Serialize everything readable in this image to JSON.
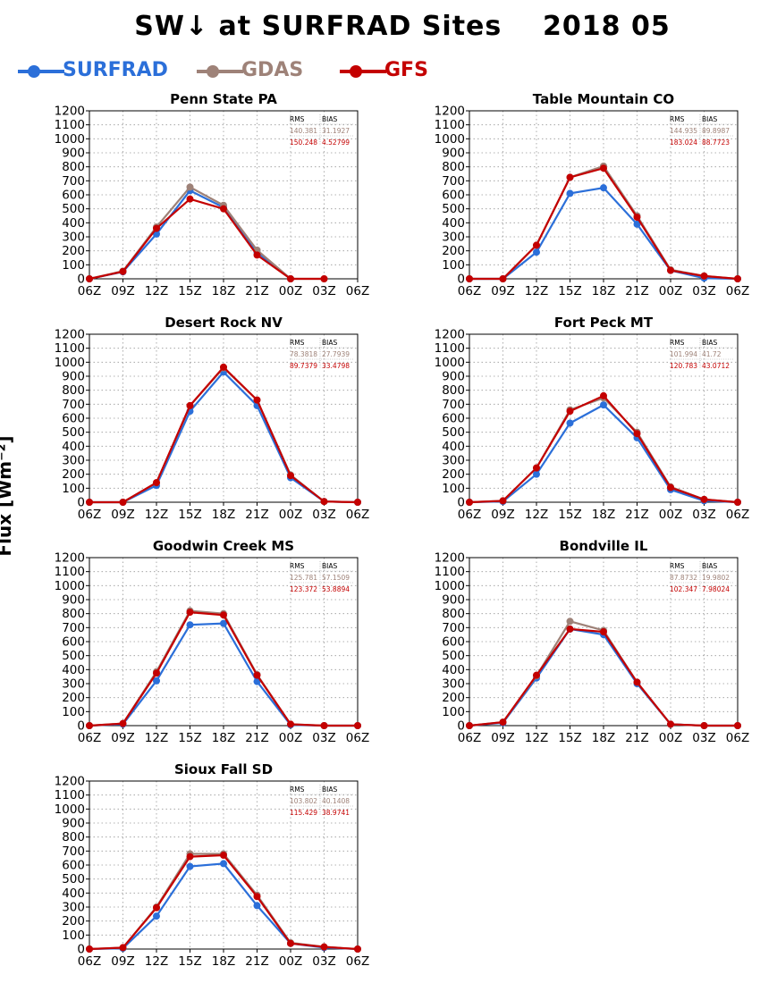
{
  "title": "SW↓ at SURFRAD Sites    2018 05",
  "legend": [
    {
      "label": "SURFRAD",
      "color": "#2b6fd9",
      "text_color": "#2b6fd9"
    },
    {
      "label": "GDAS",
      "color": "#9e8278",
      "text_color": "#9e8278"
    },
    {
      "label": "GFS",
      "color": "#c40000",
      "text_color": "#c40000"
    }
  ],
  "ylabel": "Flux [Wm⁻²]",
  "stat_headers": [
    "RMS",
    "BIAS"
  ],
  "chart_data": [
    {
      "type": "line",
      "title": "Penn State PA",
      "categories": [
        "06Z",
        "09Z",
        "12Z",
        "15Z",
        "18Z",
        "21Z",
        "00Z",
        "03Z",
        "06Z"
      ],
      "ylim": [
        0,
        1200
      ],
      "yticks": [
        0,
        100,
        200,
        300,
        400,
        500,
        600,
        700,
        800,
        900,
        1000,
        1100,
        1200
      ],
      "grid": true,
      "series": [
        {
          "name": "SURFRAD",
          "values": [
            0,
            50,
            320,
            630,
            510,
            190,
            0,
            null,
            null
          ]
        },
        {
          "name": "GDAS",
          "values": [
            0,
            55,
            370,
            655,
            525,
            205,
            0,
            0,
            null
          ]
        },
        {
          "name": "GFS",
          "values": [
            0,
            52,
            360,
            570,
            500,
            170,
            0,
            0,
            null
          ]
        }
      ],
      "stats": {
        "GDAS": [
          "140.381",
          "31.1927"
        ],
        "GFS": [
          "150.248",
          "4.52799"
        ]
      }
    },
    {
      "type": "line",
      "title": "Table Mountain CO",
      "categories": [
        "06Z",
        "09Z",
        "12Z",
        "15Z",
        "18Z",
        "21Z",
        "00Z",
        "03Z",
        "06Z"
      ],
      "ylim": [
        0,
        1200
      ],
      "yticks": [
        0,
        100,
        200,
        300,
        400,
        500,
        600,
        700,
        800,
        900,
        1000,
        1100,
        1200
      ],
      "grid": true,
      "series": [
        {
          "name": "SURFRAD",
          "values": [
            0,
            0,
            190,
            610,
            650,
            390,
            60,
            5,
            0
          ]
        },
        {
          "name": "GDAS",
          "values": [
            0,
            0,
            240,
            725,
            805,
            450,
            65,
            20,
            0
          ]
        },
        {
          "name": "GFS",
          "values": [
            0,
            0,
            240,
            725,
            790,
            440,
            60,
            20,
            0
          ]
        }
      ],
      "stats": {
        "GDAS": [
          "144.935",
          "89.8987"
        ],
        "GFS": [
          "183.024",
          "88.7723"
        ]
      }
    },
    {
      "type": "line",
      "title": "Desert Rock NV",
      "categories": [
        "06Z",
        "09Z",
        "12Z",
        "15Z",
        "18Z",
        "21Z",
        "00Z",
        "03Z",
        "06Z"
      ],
      "ylim": [
        0,
        1200
      ],
      "yticks": [
        0,
        100,
        200,
        300,
        400,
        500,
        600,
        700,
        800,
        900,
        1000,
        1100,
        1200
      ],
      "grid": true,
      "series": [
        {
          "name": "SURFRAD",
          "values": [
            0,
            0,
            120,
            650,
            930,
            690,
            175,
            5,
            0
          ]
        },
        {
          "name": "GDAS",
          "values": [
            0,
            0,
            140,
            690,
            960,
            730,
            195,
            5,
            0
          ]
        },
        {
          "name": "GFS",
          "values": [
            0,
            0,
            140,
            690,
            965,
            730,
            190,
            5,
            0
          ]
        }
      ],
      "stats": {
        "GDAS": [
          "78.3818",
          "27.7939"
        ],
        "GFS": [
          "89.7379",
          "33.4798"
        ]
      }
    },
    {
      "type": "line",
      "title": "Fort Peck MT",
      "categories": [
        "06Z",
        "09Z",
        "12Z",
        "15Z",
        "18Z",
        "21Z",
        "00Z",
        "03Z",
        "06Z"
      ],
      "ylim": [
        0,
        1200
      ],
      "yticks": [
        0,
        100,
        200,
        300,
        400,
        500,
        600,
        700,
        800,
        900,
        1000,
        1100,
        1200
      ],
      "grid": true,
      "series": [
        {
          "name": "SURFRAD",
          "values": [
            0,
            5,
            200,
            565,
            695,
            460,
            90,
            10,
            0
          ]
        },
        {
          "name": "GDAS",
          "values": [
            0,
            10,
            245,
            660,
            745,
            500,
            110,
            20,
            0
          ]
        },
        {
          "name": "GFS",
          "values": [
            0,
            10,
            245,
            650,
            760,
            490,
            105,
            20,
            0
          ]
        }
      ],
      "stats": {
        "GDAS": [
          "101.994",
          "41.72"
        ],
        "GFS": [
          "120.783",
          "43.0712"
        ]
      }
    },
    {
      "type": "line",
      "title": "Goodwin Creek MS",
      "categories": [
        "06Z",
        "09Z",
        "12Z",
        "15Z",
        "18Z",
        "21Z",
        "00Z",
        "03Z",
        "06Z"
      ],
      "ylim": [
        0,
        1200
      ],
      "yticks": [
        0,
        100,
        200,
        300,
        400,
        500,
        600,
        700,
        800,
        900,
        1000,
        1100,
        1200
      ],
      "grid": true,
      "series": [
        {
          "name": "SURFRAD",
          "values": [
            0,
            10,
            320,
            720,
            730,
            315,
            5,
            0,
            0
          ]
        },
        {
          "name": "GDAS",
          "values": [
            0,
            15,
            385,
            820,
            800,
            365,
            10,
            0,
            0
          ]
        },
        {
          "name": "GFS",
          "values": [
            0,
            15,
            375,
            810,
            790,
            360,
            10,
            0,
            0
          ]
        }
      ],
      "stats": {
        "GDAS": [
          "125.781",
          "57.1509"
        ],
        "GFS": [
          "123.372",
          "53.8894"
        ]
      }
    },
    {
      "type": "line",
      "title": "Bondville IL",
      "categories": [
        "06Z",
        "09Z",
        "12Z",
        "15Z",
        "18Z",
        "21Z",
        "00Z",
        "03Z",
        "06Z"
      ],
      "ylim": [
        0,
        1200
      ],
      "yticks": [
        0,
        100,
        200,
        300,
        400,
        500,
        600,
        700,
        800,
        900,
        1000,
        1100,
        1200
      ],
      "grid": true,
      "series": [
        {
          "name": "SURFRAD",
          "values": [
            0,
            20,
            340,
            690,
            650,
            300,
            10,
            0,
            0
          ]
        },
        {
          "name": "GDAS",
          "values": [
            0,
            25,
            355,
            745,
            680,
            310,
            10,
            0,
            0
          ]
        },
        {
          "name": "GFS",
          "values": [
            0,
            25,
            360,
            690,
            670,
            310,
            10,
            0,
            0
          ]
        }
      ],
      "stats": {
        "GDAS": [
          "87.8732",
          "19.9802"
        ],
        "GFS": [
          "102.347",
          "7.98024"
        ]
      }
    },
    {
      "type": "line",
      "title": "Sioux Fall SD",
      "categories": [
        "06Z",
        "09Z",
        "12Z",
        "15Z",
        "18Z",
        "21Z",
        "00Z",
        "03Z",
        "06Z"
      ],
      "ylim": [
        0,
        1200
      ],
      "yticks": [
        0,
        100,
        200,
        300,
        400,
        500,
        600,
        700,
        800,
        900,
        1000,
        1100,
        1200
      ],
      "grid": true,
      "series": [
        {
          "name": "SURFRAD",
          "values": [
            0,
            5,
            235,
            590,
            610,
            310,
            40,
            10,
            0
          ]
        },
        {
          "name": "GDAS",
          "values": [
            0,
            10,
            300,
            680,
            680,
            385,
            45,
            15,
            0
          ]
        },
        {
          "name": "GFS",
          "values": [
            0,
            10,
            295,
            660,
            670,
            375,
            40,
            15,
            0
          ]
        }
      ],
      "stats": {
        "GDAS": [
          "103.802",
          "40.1408"
        ],
        "GFS": [
          "115.429",
          "38.9741"
        ]
      }
    }
  ]
}
